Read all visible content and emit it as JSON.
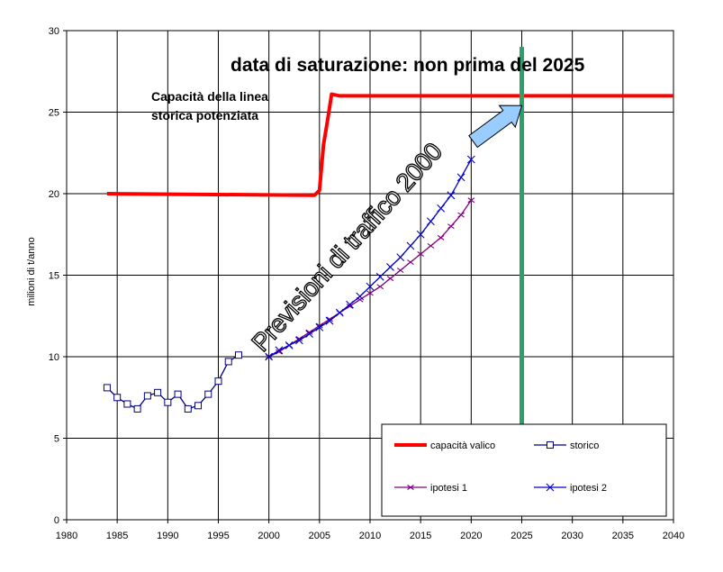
{
  "chart_data": {
    "type": "line",
    "ylabel": "milioni di t/anno",
    "xlim": [
      1980,
      2040
    ],
    "ylim": [
      0,
      30
    ],
    "x_ticks": [
      1980,
      1985,
      1990,
      1995,
      2000,
      2005,
      2010,
      2015,
      2020,
      2025,
      2030,
      2035,
      2040
    ],
    "y_ticks": [
      0,
      5,
      10,
      15,
      20,
      25,
      30
    ],
    "grid": true,
    "legend_position": "bottom-right",
    "annotations": {
      "saturation": "data di saturazione: non prima del 2025",
      "capacity_line1": "Capacità della linea",
      "capacity_line2": "storica potenziata",
      "forecast": "Previsioni di traffico 2000"
    },
    "series": [
      {
        "name": "capacità valico",
        "color": "#ff0000",
        "marker": "none",
        "points": [
          [
            1984,
            20
          ],
          [
            2004.5,
            19.9
          ],
          [
            2005,
            20.2
          ],
          [
            2005.4,
            23
          ],
          [
            2005.8,
            24.5
          ],
          [
            2006.2,
            26.1
          ],
          [
            2007,
            26
          ],
          [
            2040,
            26
          ]
        ]
      },
      {
        "name": "storico",
        "color": "#000080",
        "marker": "square",
        "points": [
          [
            1984,
            8.1
          ],
          [
            1985,
            7.5
          ],
          [
            1986,
            7.1
          ],
          [
            1987,
            6.8
          ],
          [
            1988,
            7.6
          ],
          [
            1989,
            7.8
          ],
          [
            1990,
            7.2
          ],
          [
            1991,
            7.7
          ],
          [
            1992,
            6.8
          ],
          [
            1993,
            7.0
          ],
          [
            1994,
            7.7
          ],
          [
            1995,
            8.5
          ],
          [
            1996,
            9.7
          ],
          [
            1997,
            10.1
          ]
        ]
      },
      {
        "name": "ipotesi 1",
        "color": "#800080",
        "marker": "cross",
        "points": [
          [
            2000,
            10
          ],
          [
            2001,
            10.3
          ],
          [
            2002,
            10.7
          ],
          [
            2003,
            11.1
          ],
          [
            2004,
            11.5
          ],
          [
            2005,
            11.9
          ],
          [
            2006,
            12.3
          ],
          [
            2007,
            12.7
          ],
          [
            2008,
            13.1
          ],
          [
            2009,
            13.5
          ],
          [
            2010,
            13.9
          ],
          [
            2011,
            14.3
          ],
          [
            2012,
            14.8
          ],
          [
            2013,
            15.3
          ],
          [
            2014,
            15.8
          ],
          [
            2015,
            16.3
          ],
          [
            2016,
            16.8
          ],
          [
            2017,
            17.3
          ],
          [
            2018,
            18.0
          ],
          [
            2019,
            18.7
          ],
          [
            2020,
            19.6
          ]
        ]
      },
      {
        "name": "ipotesi 2",
        "color": "#0000cc",
        "marker": "x",
        "points": [
          [
            2000,
            10
          ],
          [
            2001,
            10.4
          ],
          [
            2002,
            10.7
          ],
          [
            2003,
            11.0
          ],
          [
            2004,
            11.4
          ],
          [
            2005,
            11.8
          ],
          [
            2006,
            12.2
          ],
          [
            2007,
            12.7
          ],
          [
            2008,
            13.2
          ],
          [
            2009,
            13.7
          ],
          [
            2010,
            14.3
          ],
          [
            2011,
            14.9
          ],
          [
            2012,
            15.5
          ],
          [
            2013,
            16.1
          ],
          [
            2014,
            16.8
          ],
          [
            2015,
            17.5
          ],
          [
            2016,
            18.3
          ],
          [
            2017,
            19.1
          ],
          [
            2018,
            19.9
          ],
          [
            2019,
            21.0
          ],
          [
            2020,
            22.1
          ]
        ]
      },
      {
        "name": "",
        "color": "#2e9e6b",
        "marker": "none",
        "vertical_at": 2025,
        "y_range": [
          5.5,
          29
        ]
      }
    ],
    "arrow": {
      "from": [
        2020.2,
        23.2
      ],
      "to": [
        2025,
        25.4
      ],
      "color": "#99ccff"
    }
  }
}
